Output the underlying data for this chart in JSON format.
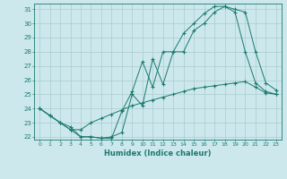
{
  "xlabel": "Humidex (Indice chaleur)",
  "bg_color": "#cce8ec",
  "grid_color": "#aacccc",
  "line_color": "#1a7a6e",
  "xlim": [
    -0.5,
    23.5
  ],
  "ylim": [
    21.8,
    31.4
  ],
  "xticks": [
    0,
    1,
    2,
    3,
    4,
    5,
    6,
    7,
    8,
    9,
    10,
    11,
    12,
    13,
    14,
    15,
    16,
    17,
    18,
    19,
    20,
    21,
    22,
    23
  ],
  "yticks": [
    22,
    23,
    24,
    25,
    26,
    27,
    28,
    29,
    30,
    31
  ],
  "series": [
    {
      "x": [
        0,
        1,
        2,
        3,
        4,
        5,
        6,
        7,
        8,
        9,
        10,
        11,
        12,
        13,
        14,
        15,
        16,
        17,
        18,
        19,
        20,
        21,
        22,
        23
      ],
      "y": [
        24,
        23.5,
        23,
        22.7,
        22,
        22,
        21.9,
        22,
        22.3,
        25,
        24.2,
        27.5,
        25.7,
        28,
        28,
        29.5,
        30,
        30.8,
        31.2,
        31,
        30.8,
        28,
        25.8,
        25.3
      ]
    },
    {
      "x": [
        0,
        1,
        2,
        3,
        4,
        5,
        6,
        7,
        8,
        9,
        10,
        11,
        12,
        13,
        14,
        15,
        16,
        17,
        18,
        19,
        20,
        21,
        22,
        23
      ],
      "y": [
        24,
        23.5,
        23,
        22.5,
        22,
        22,
        21.9,
        21.9,
        23.8,
        25.2,
        27.3,
        25.5,
        28,
        28,
        29.3,
        30,
        30.7,
        31.2,
        31.2,
        30.8,
        28,
        25.8,
        25.2,
        25
      ]
    },
    {
      "x": [
        0,
        1,
        2,
        3,
        4,
        5,
        6,
        7,
        8,
        9,
        10,
        11,
        12,
        13,
        14,
        15,
        16,
        17,
        18,
        19,
        20,
        21,
        22,
        23
      ],
      "y": [
        24,
        23.5,
        23,
        22.5,
        22.5,
        23,
        23.3,
        23.6,
        23.9,
        24.2,
        24.4,
        24.6,
        24.8,
        25.0,
        25.2,
        25.4,
        25.5,
        25.6,
        25.7,
        25.8,
        25.9,
        25.5,
        25.1,
        25.0
      ]
    }
  ]
}
